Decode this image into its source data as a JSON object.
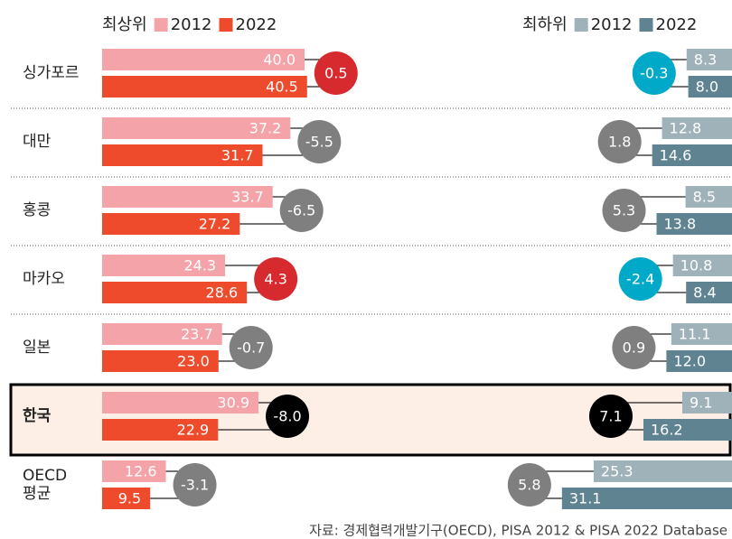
{
  "chart_data": {
    "type": "paired-bar",
    "categories": [
      "싱가포르",
      "대만",
      "홍콩",
      "마카오",
      "일본",
      "한국",
      "OECD\n평균"
    ],
    "highlight": 5,
    "groups": [
      {
        "title": "최상위",
        "series": [
          {
            "name": "2012",
            "color": "#f4a3a9",
            "values": [
              40.0,
              37.2,
              33.7,
              24.3,
              23.7,
              30.9,
              12.6
            ],
            "value_labels": [
              "40.0",
              "37.2",
              "33.7",
              "24.3",
              "23.7",
              "30.9",
              "12.6"
            ]
          },
          {
            "name": "2022",
            "color": "#ee4a2c",
            "values": [
              40.5,
              31.7,
              27.2,
              28.6,
              23.0,
              22.9,
              9.5
            ],
            "value_labels": [
              "40.5",
              "31.7",
              "27.2",
              "28.6",
              "23.0",
              "22.9",
              "9.5"
            ]
          }
        ],
        "change": {
          "values": [
            0.5,
            -5.5,
            -6.5,
            4.3,
            -0.7,
            -8.0,
            -3.1
          ],
          "value_labels": [
            "0.5",
            "-5.5",
            "-6.5",
            "4.3",
            "-0.7",
            "-8.0",
            "-3.1"
          ],
          "colors": [
            "#d62a2e",
            "#7f7f80",
            "#7f7f80",
            "#d62a2e",
            "#7f7f80",
            "#000000",
            "#7f7f80"
          ]
        }
      },
      {
        "title": "최하위",
        "series": [
          {
            "name": "2012",
            "color": "#9fb1b9",
            "values": [
              8.3,
              12.8,
              8.5,
              10.8,
              11.1,
              9.1,
              25.3
            ],
            "value_labels": [
              "8.3",
              "12.8",
              "8.5",
              "10.8",
              "11.1",
              "9.1",
              "25.3"
            ]
          },
          {
            "name": "2022",
            "color": "#5f8391",
            "values": [
              8.0,
              14.6,
              13.8,
              8.4,
              12.0,
              16.2,
              31.1
            ],
            "value_labels": [
              "8.0",
              "14.6",
              "13.8",
              "8.4",
              "12.0",
              "16.2",
              "31.1"
            ]
          }
        ],
        "change": {
          "values": [
            -0.3,
            1.8,
            5.3,
            -2.4,
            0.9,
            7.1,
            5.8
          ],
          "value_labels": [
            "-0.3",
            "1.8",
            "5.3",
            "-2.4",
            "0.9",
            "7.1",
            "5.8"
          ],
          "colors": [
            "#00a9c7",
            "#7f7f80",
            "#7f7f80",
            "#00a9c7",
            "#7f7f80",
            "#000000",
            "#7f7f80"
          ]
        }
      }
    ],
    "source": "자료: 경제협력개발기구(OECD), PISA 2012 & PISA 2022 Database"
  }
}
